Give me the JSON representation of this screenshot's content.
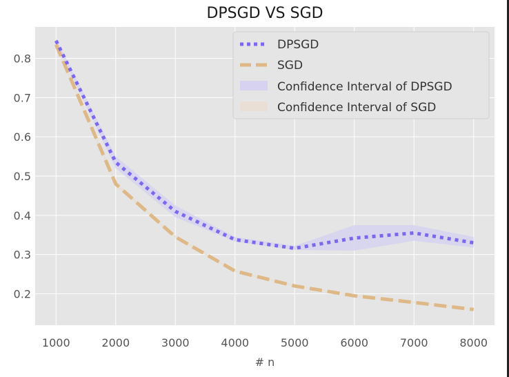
{
  "chart_data": {
    "type": "line",
    "title": "DPSGD VS SGD",
    "xlabel": "# n",
    "ylabel": "",
    "x": [
      1000,
      2000,
      3000,
      4000,
      5000,
      6000,
      7000,
      8000
    ],
    "xticks": [
      "1000",
      "2000",
      "3000",
      "4000",
      "5000",
      "6000",
      "7000",
      "8000"
    ],
    "yticks": [
      "0.2",
      "0.3",
      "0.4",
      "0.5",
      "0.6",
      "0.7",
      "0.8"
    ],
    "xlim": [
      650,
      8350
    ],
    "ylim": [
      0.12,
      0.88
    ],
    "grid": true,
    "legend_position": "top-right",
    "series": [
      {
        "name": "DPSGD",
        "style": "dotted",
        "color": "#7b68ee",
        "values": [
          0.845,
          0.535,
          0.41,
          0.338,
          0.316,
          0.342,
          0.355,
          0.33
        ],
        "ci_name": "Confidence Interval of DPSGD",
        "ci_color": "#d6d2f0",
        "ci_lower": [
          0.84,
          0.52,
          0.395,
          0.333,
          0.312,
          0.31,
          0.335,
          0.318
        ],
        "ci_upper": [
          0.85,
          0.55,
          0.425,
          0.345,
          0.322,
          0.375,
          0.375,
          0.345
        ]
      },
      {
        "name": "SGD",
        "style": "dashed",
        "color": "#deb887",
        "values": [
          0.835,
          0.48,
          0.345,
          0.258,
          0.22,
          0.195,
          0.178,
          0.16
        ],
        "ci_name": "Confidence Interval of SGD",
        "ci_color": "#e9dfd4",
        "ci_lower": [
          0.83,
          0.475,
          0.342,
          0.256,
          0.219,
          0.194,
          0.177,
          0.159
        ],
        "ci_upper": [
          0.84,
          0.485,
          0.348,
          0.26,
          0.222,
          0.197,
          0.18,
          0.162
        ]
      }
    ],
    "colors": {
      "plot_bg": "#e5e5e5",
      "grid": "#ffffff",
      "legend_bg": "#e5e5e5"
    }
  }
}
